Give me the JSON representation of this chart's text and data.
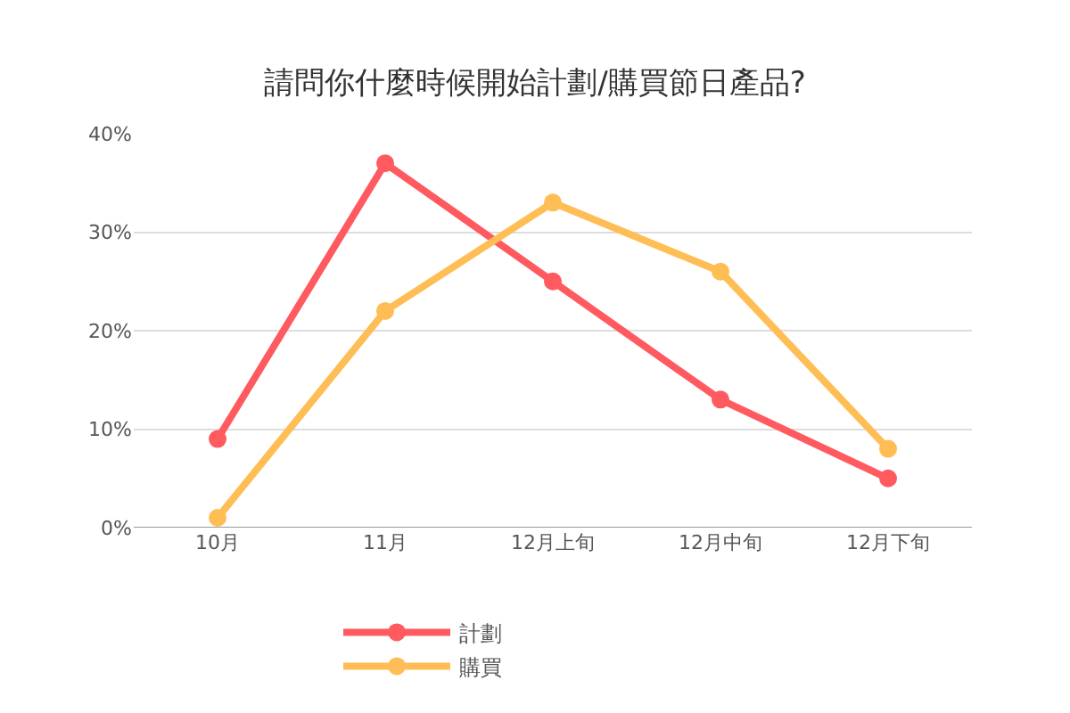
{
  "chart_data": {
    "type": "line",
    "title": "請問你什麼時候開始計劃/購買節日產品?",
    "categories": [
      "10月",
      "11月",
      "12月上旬",
      "12月中旬",
      "12月下旬"
    ],
    "series": [
      {
        "name": "計劃",
        "color": "#ff5a5f",
        "values": [
          9,
          37,
          25,
          13,
          5
        ]
      },
      {
        "name": "購買",
        "color": "#ffbe55",
        "values": [
          1,
          22,
          33,
          26,
          8
        ]
      }
    ],
    "ylim": [
      0,
      40
    ],
    "yticks": [
      {
        "value": 0,
        "label": "0%"
      },
      {
        "value": 10,
        "label": "10%"
      },
      {
        "value": 20,
        "label": "20%"
      },
      {
        "value": 30,
        "label": "30%"
      },
      {
        "value": 40,
        "label": "40%"
      }
    ],
    "grid": "y",
    "legend": "bottom",
    "marker": "circle",
    "line_style": "solid"
  }
}
